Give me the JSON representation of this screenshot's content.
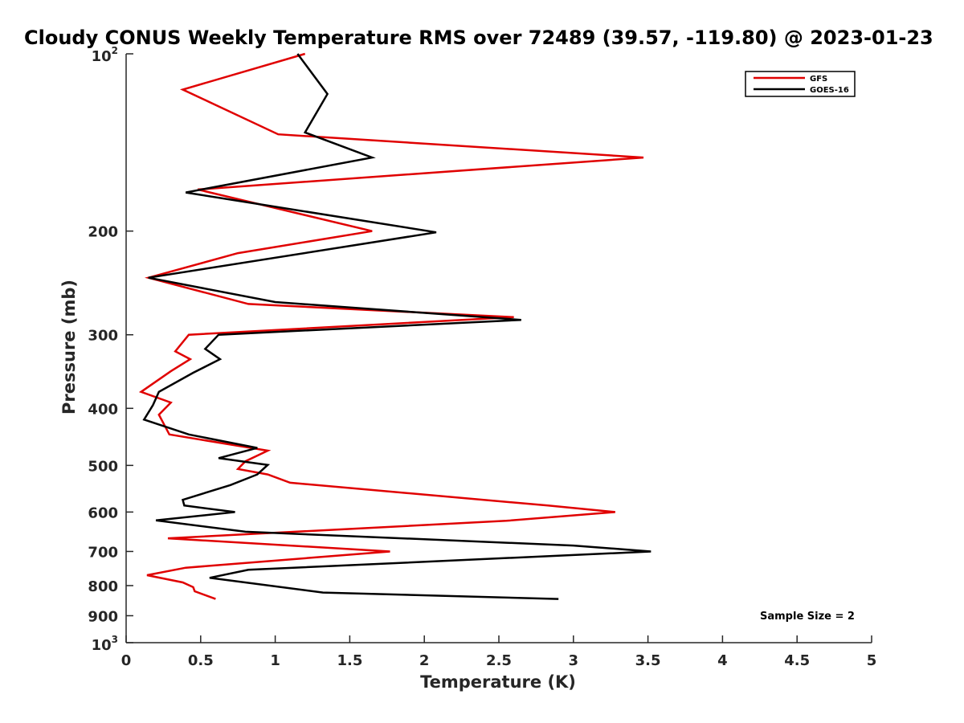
{
  "chart_data": {
    "type": "line",
    "title": "Cloudy CONUS Weekly Temperature RMS over 72489 (39.57, -119.80) @ 2023-01-23",
    "xlabel": "Temperature (K)",
    "ylabel": "Pressure (mb)",
    "xlim": [
      0,
      5
    ],
    "ylim": [
      100,
      1000
    ],
    "yscale": "log",
    "y_reversed": true,
    "x_ticks": [
      0,
      0.5,
      1,
      1.5,
      2,
      2.5,
      3,
      3.5,
      4,
      4.5,
      5
    ],
    "x_tick_labels": [
      "0",
      "0.5",
      "1",
      "1.5",
      "2",
      "2.5",
      "3",
      "3.5",
      "4",
      "4.5",
      "5"
    ],
    "y_ticks": [
      {
        "value": 100,
        "base": "10",
        "exp": "2"
      },
      {
        "value": 200,
        "label": "200"
      },
      {
        "value": 300,
        "label": "300"
      },
      {
        "value": 400,
        "label": "400"
      },
      {
        "value": 500,
        "label": "500"
      },
      {
        "value": 600,
        "label": "600"
      },
      {
        "value": 700,
        "label": "700"
      },
      {
        "value": 800,
        "label": "800"
      },
      {
        "value": 900,
        "label": "900"
      },
      {
        "value": 1000,
        "base": "10",
        "exp": "3"
      }
    ],
    "legend_position": "top-right",
    "grid": false,
    "annotation": "Sample Size = 2",
    "series": [
      {
        "name": "GFS",
        "color": "#e00000",
        "points": [
          [
            1.2,
            100
          ],
          [
            0.38,
            115
          ],
          [
            1.02,
            137
          ],
          [
            3.47,
            150
          ],
          [
            0.48,
            170
          ],
          [
            1.65,
            200
          ],
          [
            0.75,
            218
          ],
          [
            0.15,
            240
          ],
          [
            0.82,
            266
          ],
          [
            2.6,
            280
          ],
          [
            0.42,
            300
          ],
          [
            0.33,
            320
          ],
          [
            0.43,
            330
          ],
          [
            0.3,
            346
          ],
          [
            0.1,
            375
          ],
          [
            0.3,
            391
          ],
          [
            0.22,
            410
          ],
          [
            0.29,
            443
          ],
          [
            0.95,
            472
          ],
          [
            0.8,
            492
          ],
          [
            0.75,
            507
          ],
          [
            0.95,
            518
          ],
          [
            1.1,
            535
          ],
          [
            2.83,
            585
          ],
          [
            3.28,
            600
          ],
          [
            2.55,
            621
          ],
          [
            0.28,
            665
          ],
          [
            1.77,
            700
          ],
          [
            0.4,
            746
          ],
          [
            0.14,
            768
          ],
          [
            0.38,
            790
          ],
          [
            0.45,
            805
          ],
          [
            0.46,
            818
          ],
          [
            0.6,
            843
          ]
        ]
      },
      {
        "name": "GOES-16",
        "color": "#000000",
        "points": [
          [
            1.15,
            100
          ],
          [
            1.35,
            117
          ],
          [
            1.2,
            136
          ],
          [
            1.65,
            150
          ],
          [
            0.4,
            172
          ],
          [
            2.08,
            201
          ],
          [
            0.15,
            240
          ],
          [
            1.0,
            264
          ],
          [
            2.65,
            283
          ],
          [
            0.62,
            300
          ],
          [
            0.53,
            317
          ],
          [
            0.63,
            330
          ],
          [
            0.45,
            348
          ],
          [
            0.22,
            375
          ],
          [
            0.18,
            395
          ],
          [
            0.12,
            418
          ],
          [
            0.42,
            443
          ],
          [
            0.88,
            467
          ],
          [
            0.62,
            486
          ],
          [
            0.95,
            499
          ],
          [
            0.88,
            518
          ],
          [
            0.7,
            540
          ],
          [
            0.38,
            572
          ],
          [
            0.39,
            585
          ],
          [
            0.73,
            600
          ],
          [
            0.2,
            620
          ],
          [
            0.8,
            648
          ],
          [
            3.0,
            684
          ],
          [
            3.52,
            700
          ],
          [
            0.82,
            752
          ],
          [
            0.56,
            776
          ],
          [
            1.32,
            822
          ],
          [
            2.9,
            843
          ]
        ]
      }
    ]
  }
}
